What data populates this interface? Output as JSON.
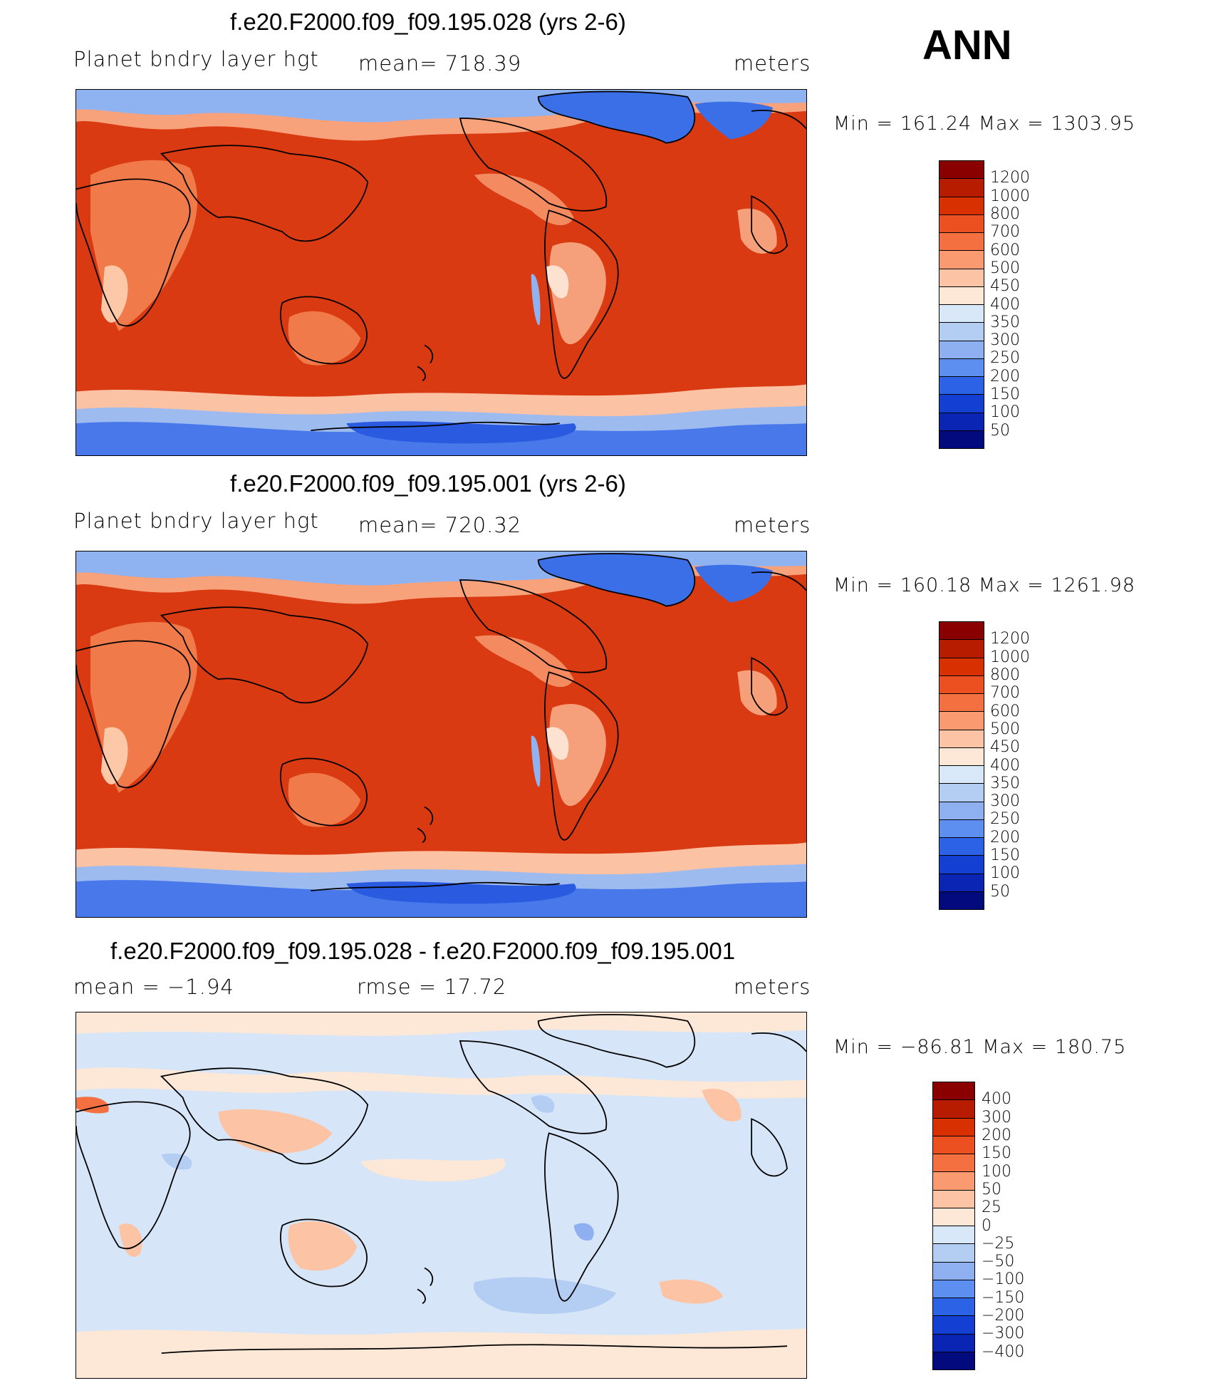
{
  "season": "ANN",
  "panels": [
    {
      "title": "f.e20.F2000.f09_f09.195.028 (yrs 2-6)",
      "left": "Planet bndry layer hgt",
      "center": "mean= 718.39",
      "units": "meters",
      "minmax": "Min = 161.24 Max = 1303.95",
      "colorbar_levels": [
        "1200",
        "1000",
        "800",
        "700",
        "600",
        "500",
        "450",
        "400",
        "350",
        "300",
        "250",
        "200",
        "150",
        "100",
        "50"
      ],
      "colorbar_colors": [
        "#8a0000",
        "#b81c00",
        "#d93000",
        "#ec5020",
        "#f57040",
        "#fa9a70",
        "#fcc4a4",
        "#fde7d6",
        "#d8e8f8",
        "#b4cdf2",
        "#8fb0f0",
        "#5d8ff0",
        "#2c63e6",
        "#1340d2",
        "#0a24b4",
        "#020a7e"
      ]
    },
    {
      "title": "f.e20.F2000.f09_f09.195.001 (yrs 2-6)",
      "left": "Planet bndry layer hgt",
      "center": "mean= 720.32",
      "units": "meters",
      "minmax": "Min = 160.18 Max = 1261.98",
      "colorbar_levels": [
        "1200",
        "1000",
        "800",
        "700",
        "600",
        "500",
        "450",
        "400",
        "350",
        "300",
        "250",
        "200",
        "150",
        "100",
        "50"
      ],
      "colorbar_colors": [
        "#8a0000",
        "#b81c00",
        "#d93000",
        "#ec5020",
        "#f57040",
        "#fa9a70",
        "#fcc4a4",
        "#fde7d6",
        "#d8e8f8",
        "#b4cdf2",
        "#8fb0f0",
        "#5d8ff0",
        "#2c63e6",
        "#1340d2",
        "#0a24b4",
        "#020a7e"
      ]
    },
    {
      "title": "f.e20.F2000.f09_f09.195.028 - f.e20.F2000.f09_f09.195.001",
      "left": "mean =   −1.94",
      "center": "rmse =   17.72",
      "units": "meters",
      "minmax": "Min = −86.81 Max = 180.75",
      "colorbar_levels": [
        "400",
        "300",
        "200",
        "150",
        "100",
        "50",
        "25",
        "0",
        "−25",
        "−50",
        "−100",
        "−150",
        "−200",
        "−300",
        "−400"
      ],
      "colorbar_colors": [
        "#8a0000",
        "#b81c00",
        "#d93000",
        "#ec5020",
        "#f57040",
        "#fa9a70",
        "#fcc4a4",
        "#fde7d6",
        "#d8e8f8",
        "#b4cdf2",
        "#8fb0f0",
        "#5d8ff0",
        "#2c63e6",
        "#1340d2",
        "#0a24b4",
        "#020a7e"
      ]
    }
  ]
}
